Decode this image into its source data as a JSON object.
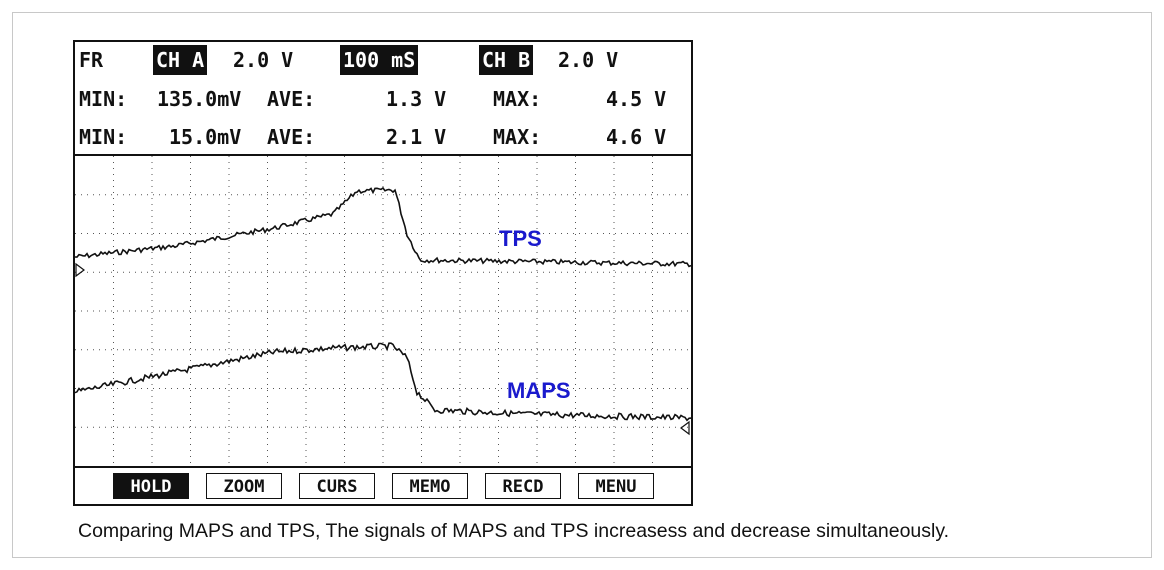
{
  "header": {
    "mode": "FR",
    "ch_a_label": "CH A",
    "ch_a_scale": "2.0 V",
    "timebase": "100 mS",
    "ch_b_label": "CH B",
    "ch_b_scale": "2.0 V"
  },
  "stats": [
    {
      "min_label": "MIN:",
      "min": "135.0mV",
      "ave_label": "AVE:",
      "ave": "1.3 V",
      "max_label": "MAX:",
      "max": "4.5 V"
    },
    {
      "min_label": "MIN:",
      "min": "15.0mV",
      "ave_label": "AVE:",
      "ave": "2.1 V",
      "max_label": "MAX:",
      "max": "4.6 V"
    }
  ],
  "signals": {
    "tps_label": "TPS",
    "maps_label": "MAPS",
    "label_color": "#1a1acd",
    "trace_color": "#111111"
  },
  "buttons": [
    {
      "label": "HOLD",
      "active": true
    },
    {
      "label": "ZOOM",
      "active": false
    },
    {
      "label": "CURS",
      "active": false
    },
    {
      "label": "MEMO",
      "active": false
    },
    {
      "label": "RECD",
      "active": false
    },
    {
      "label": "MENU",
      "active": false
    }
  ],
  "caption": "Comparing MAPS and TPS, The signals of MAPS and TPS increasess and decrease simultaneously."
}
